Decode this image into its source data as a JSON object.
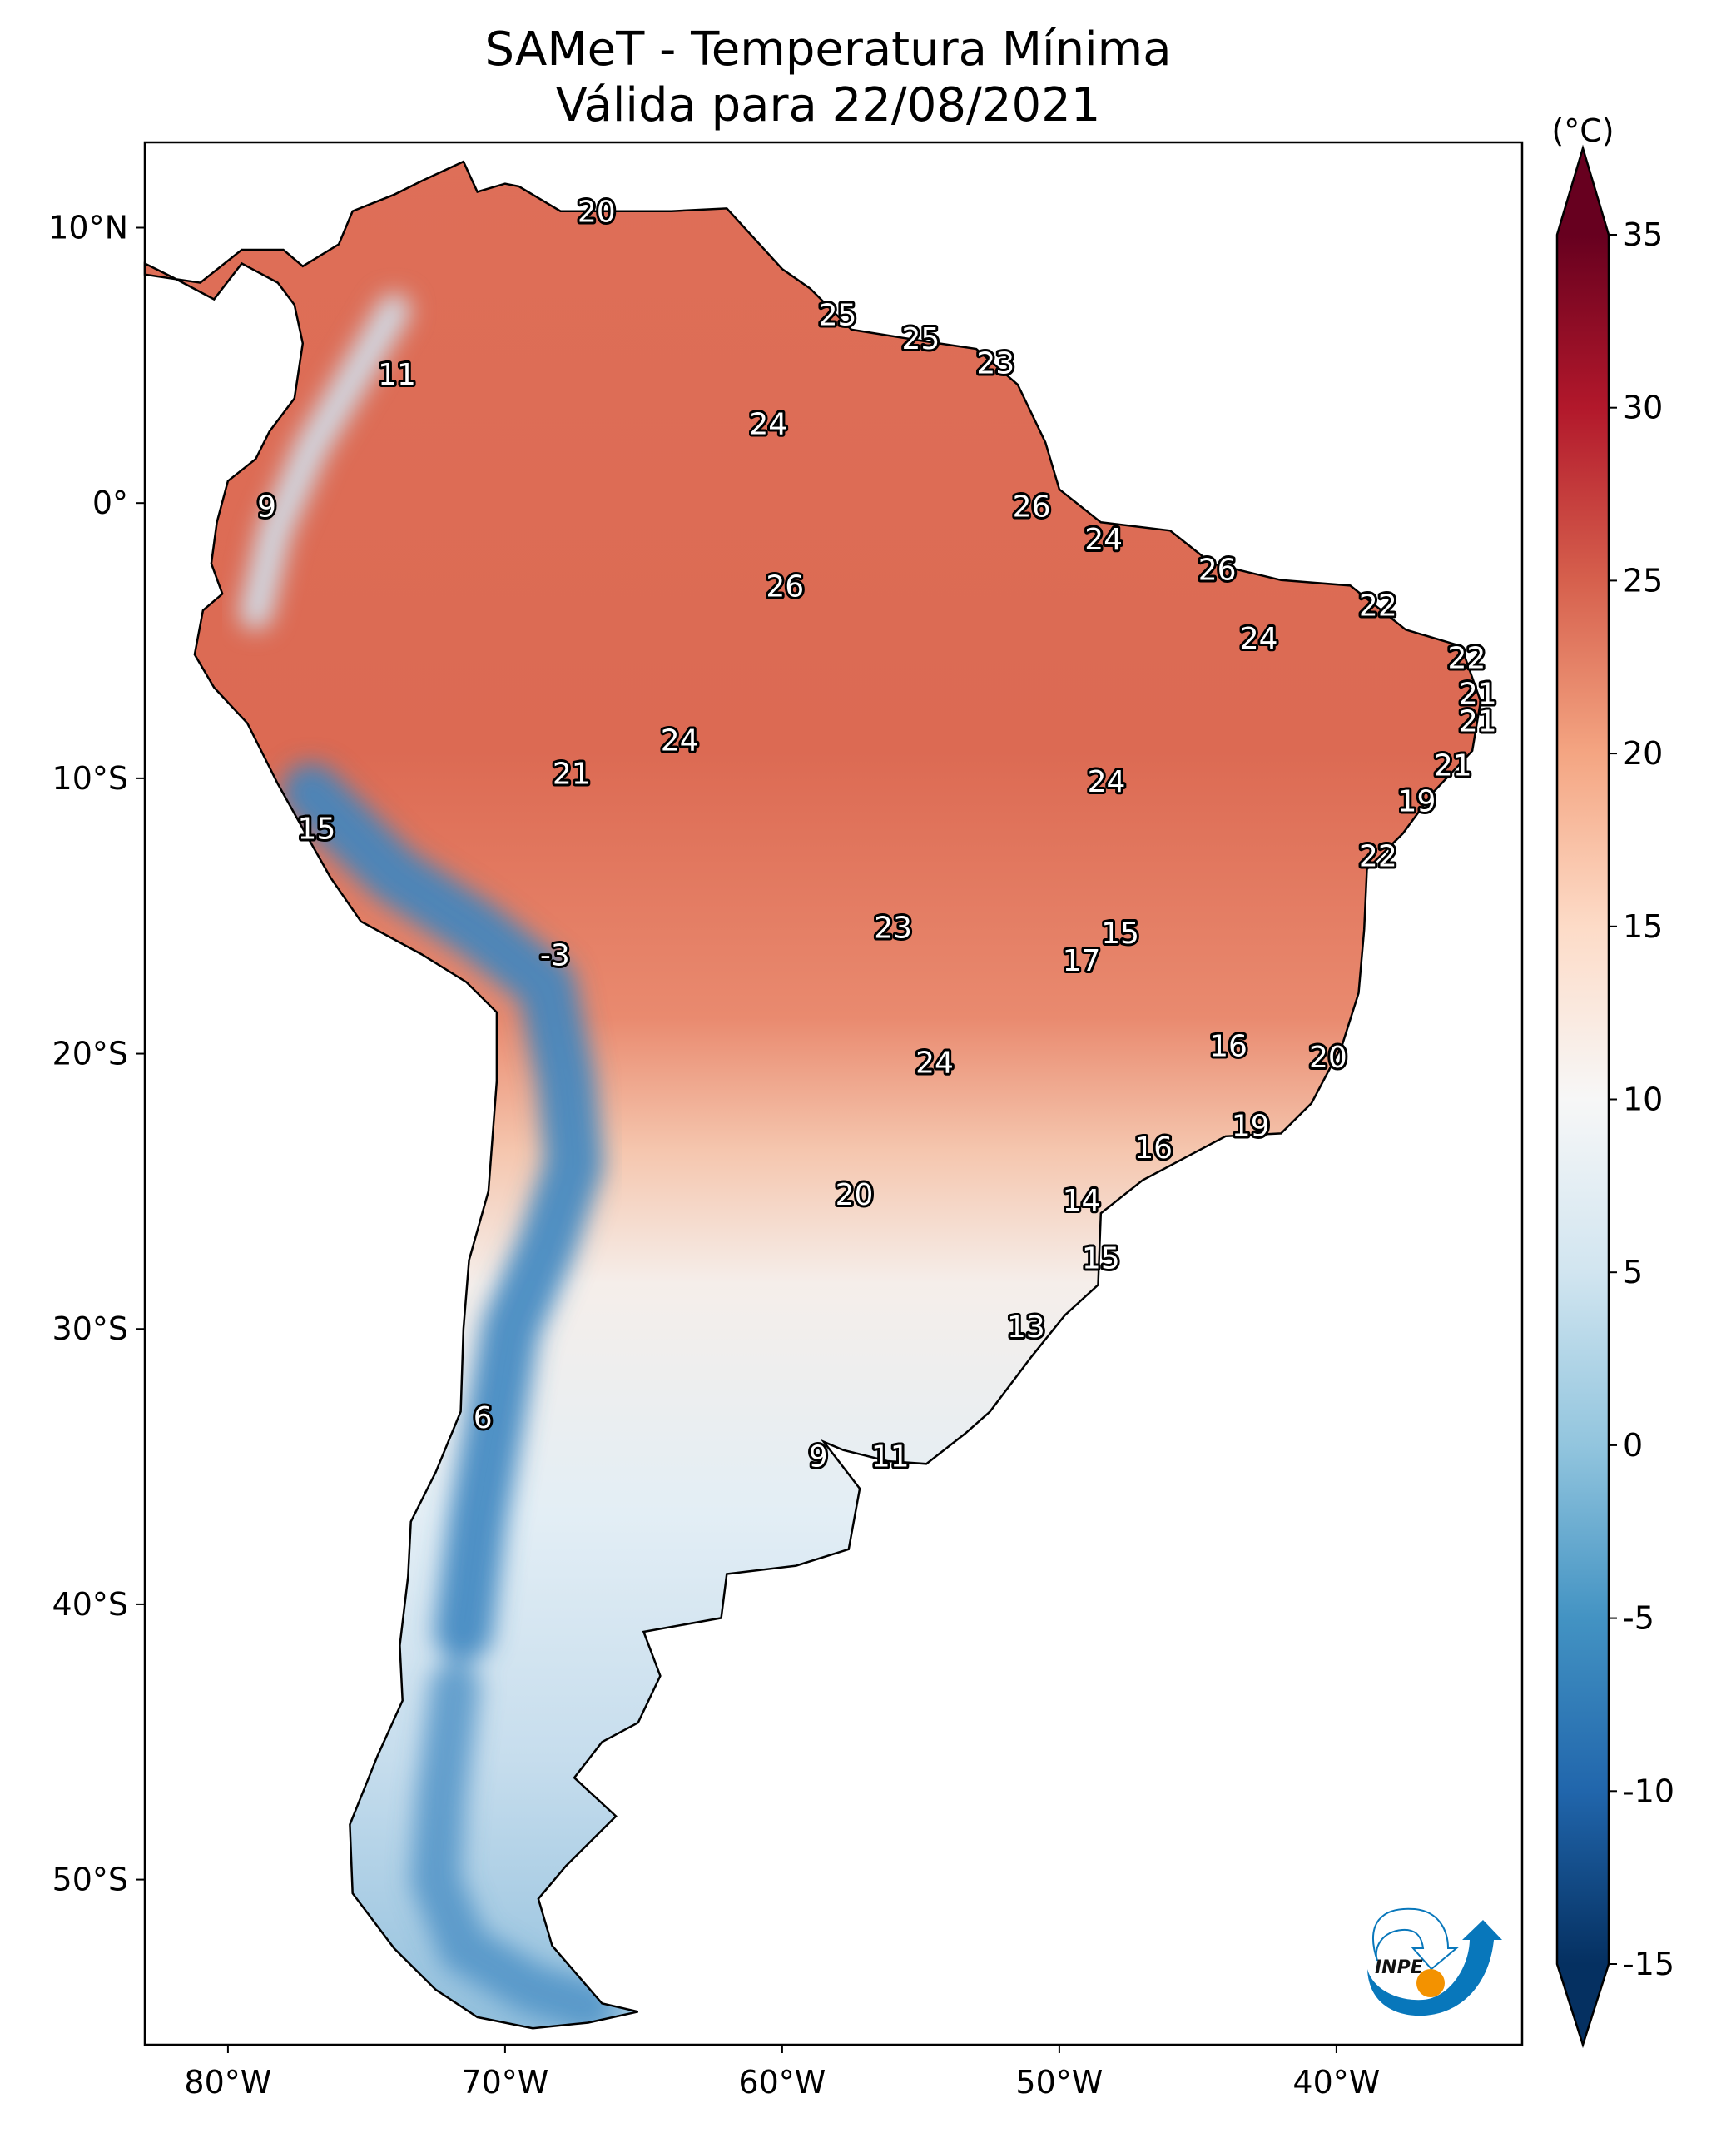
{
  "title": {
    "line1": "SAMeT - Temperatura Mínima",
    "line2": "Válida para 22/08/2021"
  },
  "map": {
    "type": "heatmap",
    "projection": "PlateCarree",
    "extent": {
      "lon": [
        -83,
        -33.3
      ],
      "lat": [
        -56,
        13.1
      ]
    },
    "x_ticks": [
      {
        "lon": -80,
        "label": "80°W"
      },
      {
        "lon": -70,
        "label": "70°W"
      },
      {
        "lon": -60,
        "label": "60°W"
      },
      {
        "lon": -50,
        "label": "50°W"
      },
      {
        "lon": -40,
        "label": "40°W"
      }
    ],
    "y_ticks": [
      {
        "lat": 10,
        "label": "10°N"
      },
      {
        "lat": 0,
        "label": "0°"
      },
      {
        "lat": -10,
        "label": "10°S"
      },
      {
        "lat": -20,
        "label": "20°S"
      },
      {
        "lat": -30,
        "label": "30°S"
      },
      {
        "lat": -40,
        "label": "40°S"
      },
      {
        "lat": -50,
        "label": "50°S"
      }
    ],
    "annotations": [
      {
        "value": "20",
        "lon": -66.7,
        "lat": 10.6
      },
      {
        "value": "25",
        "lon": -58.0,
        "lat": 6.85
      },
      {
        "value": "25",
        "lon": -55.0,
        "lat": 6.0
      },
      {
        "value": "23",
        "lon": -52.3,
        "lat": 5.1
      },
      {
        "value": "11",
        "lon": -73.9,
        "lat": 4.7
      },
      {
        "value": "24",
        "lon": -60.5,
        "lat": 2.9
      },
      {
        "value": "9",
        "lon": -78.6,
        "lat": -0.1
      },
      {
        "value": "26",
        "lon": -51.0,
        "lat": -0.1
      },
      {
        "value": "24",
        "lon": -48.4,
        "lat": -1.3
      },
      {
        "value": "26",
        "lon": -44.3,
        "lat": -2.4
      },
      {
        "value": "26",
        "lon": -59.9,
        "lat": -3.0
      },
      {
        "value": "22",
        "lon": -38.5,
        "lat": -3.7
      },
      {
        "value": "24",
        "lon": -42.8,
        "lat": -4.9
      },
      {
        "value": "22",
        "lon": -35.3,
        "lat": -5.6
      },
      {
        "value": "21",
        "lon": -34.9,
        "lat": -6.9
      },
      {
        "value": "21",
        "lon": -34.9,
        "lat": -7.9
      },
      {
        "value": "24",
        "lon": -63.7,
        "lat": -8.6
      },
      {
        "value": "21",
        "lon": -35.8,
        "lat": -9.5
      },
      {
        "value": "24",
        "lon": -48.3,
        "lat": -10.1
      },
      {
        "value": "21",
        "lon": -67.6,
        "lat": -9.8
      },
      {
        "value": "19",
        "lon": -37.1,
        "lat": -10.8
      },
      {
        "value": "15",
        "lon": -76.8,
        "lat": -11.8
      },
      {
        "value": "22",
        "lon": -38.5,
        "lat": -12.8
      },
      {
        "value": "23",
        "lon": -56.0,
        "lat": -15.4
      },
      {
        "value": "15",
        "lon": -47.8,
        "lat": -15.6
      },
      {
        "value": "17",
        "lon": -49.2,
        "lat": -16.6
      },
      {
        "value": "-3",
        "lon": -68.2,
        "lat": -16.4
      },
      {
        "value": "16",
        "lon": -43.9,
        "lat": -19.7
      },
      {
        "value": "20",
        "lon": -40.3,
        "lat": -20.1
      },
      {
        "value": "24",
        "lon": -54.5,
        "lat": -20.3
      },
      {
        "value": "19",
        "lon": -43.1,
        "lat": -22.6
      },
      {
        "value": "16",
        "lon": -46.6,
        "lat": -23.4
      },
      {
        "value": "20",
        "lon": -57.4,
        "lat": -25.1
      },
      {
        "value": "14",
        "lon": -49.2,
        "lat": -25.3
      },
      {
        "value": "15",
        "lon": -48.5,
        "lat": -27.4
      },
      {
        "value": "13",
        "lon": -51.2,
        "lat": -29.9
      },
      {
        "value": "6",
        "lon": -70.8,
        "lat": -33.2
      },
      {
        "value": "9",
        "lon": -58.7,
        "lat": -34.6
      },
      {
        "value": "11",
        "lon": -56.1,
        "lat": -34.6
      }
    ]
  },
  "colorbar": {
    "unit_label": "(°C)",
    "range": [
      -15,
      35
    ],
    "extend": "both",
    "colormap": "RdBu_r",
    "ticks": [
      "35",
      "30",
      "25",
      "20",
      "15",
      "10",
      "5",
      "0",
      "-5",
      "-10",
      "-15"
    ],
    "colors": [
      "#053061",
      "#2166ac",
      "#4393c3",
      "#92c5de",
      "#d1e5f0",
      "#f7f7f7",
      "#fddbc7",
      "#f4a582",
      "#d6604d",
      "#b2182b",
      "#67001f"
    ]
  },
  "logo": {
    "text": "INPE",
    "colors": {
      "blue": "#0877bb",
      "orange": "#f39200"
    }
  }
}
